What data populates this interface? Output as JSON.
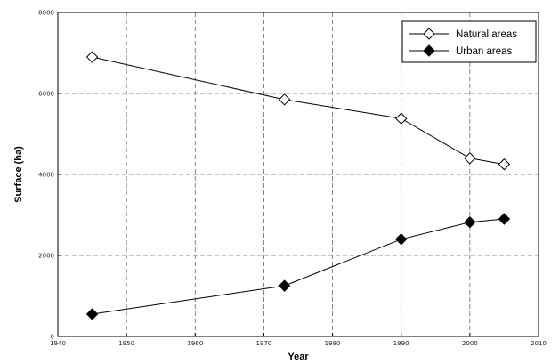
{
  "chart_data": {
    "type": "line",
    "xlabel": "Year",
    "ylabel": "Surface (ha)",
    "xlim": [
      1940,
      2010
    ],
    "ylim": [
      0,
      8000
    ],
    "xticks": [
      1940,
      1950,
      1960,
      1970,
      1980,
      1990,
      2000,
      2010
    ],
    "yticks": [
      0,
      2000,
      4000,
      6000,
      8000
    ],
    "grid": true,
    "legend_position": "top-right",
    "series": [
      {
        "name": "Natural areas",
        "marker": "open-diamond",
        "x": [
          1945,
          1973,
          1990,
          2000,
          2005
        ],
        "y": [
          6900,
          5850,
          5380,
          4400,
          4250
        ]
      },
      {
        "name": "Urban areas",
        "marker": "filled-diamond",
        "x": [
          1945,
          1973,
          1990,
          2000,
          2005
        ],
        "y": [
          550,
          1250,
          2400,
          2820,
          2900
        ]
      }
    ],
    "colors": {
      "line": "#000000",
      "grid": "#666666"
    }
  }
}
